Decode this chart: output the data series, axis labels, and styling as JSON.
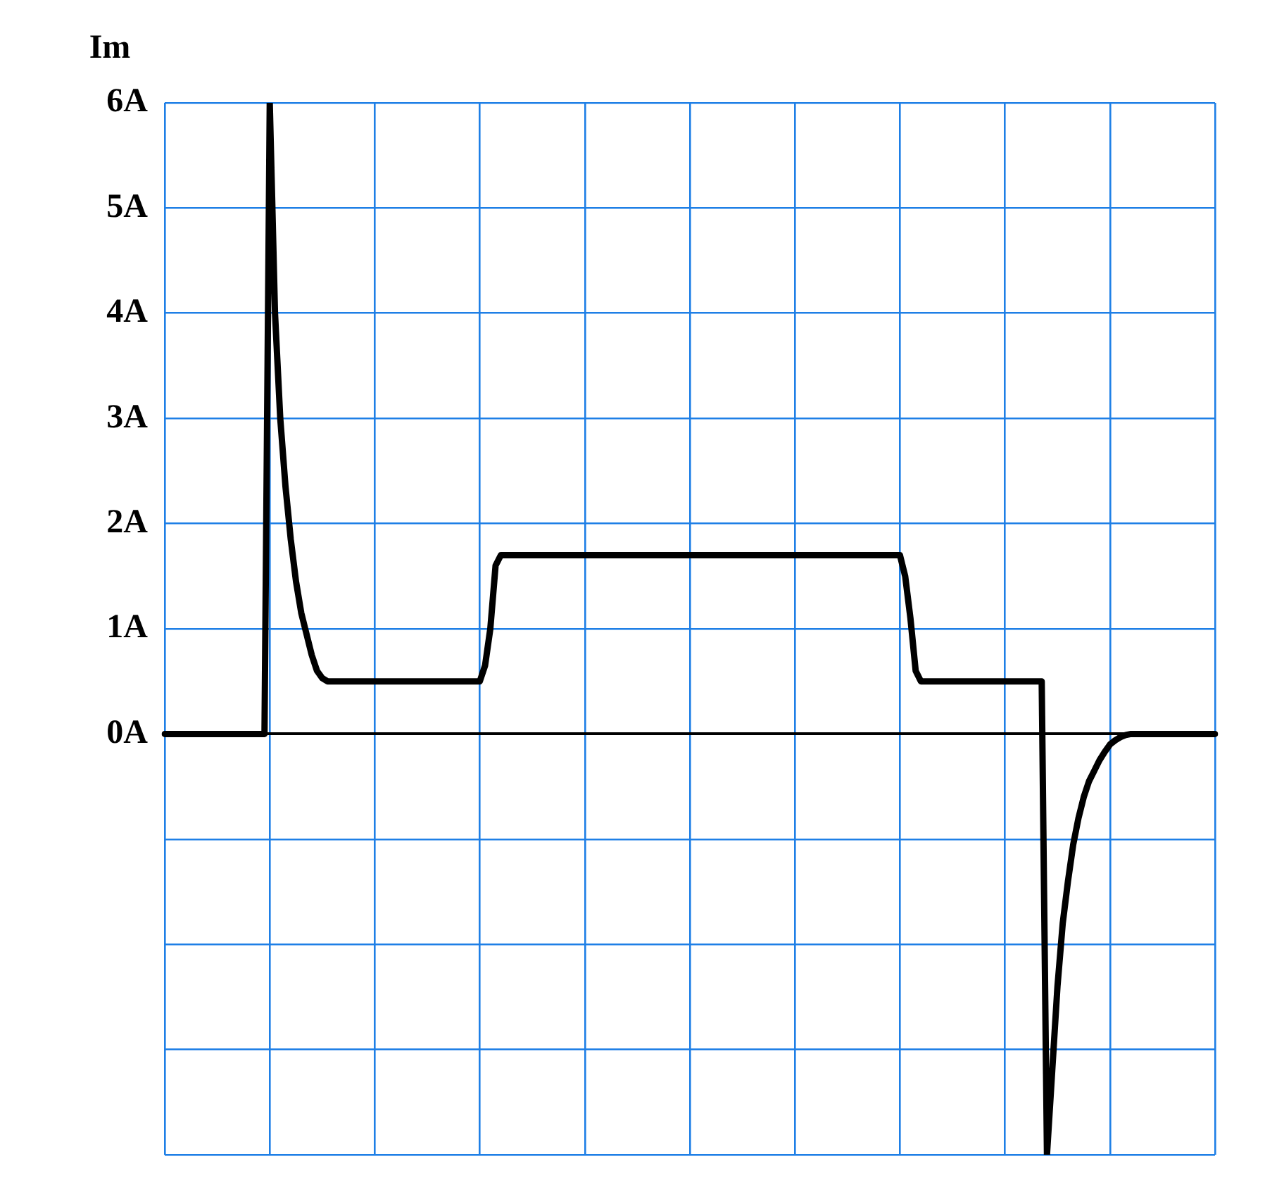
{
  "chart_data": {
    "type": "line",
    "ylabel": "Im",
    "categories": [
      null,
      null,
      null,
      null,
      null,
      null,
      null,
      null,
      null,
      null,
      null,
      null,
      null,
      null,
      null,
      null,
      null,
      null,
      null,
      null,
      null,
      null,
      null,
      null,
      null,
      null,
      null,
      null,
      null,
      null,
      null,
      null,
      null,
      null,
      null,
      null,
      null,
      null,
      null,
      null,
      null,
      null,
      null,
      null,
      null,
      null,
      null,
      null,
      null,
      null,
      null,
      null,
      null,
      null,
      null,
      null,
      null,
      null,
      null,
      null,
      null,
      null,
      null,
      null,
      null,
      null,
      null,
      null,
      null,
      null,
      null,
      null,
      null,
      null,
      null,
      null,
      null,
      null,
      null,
      null,
      null,
      null,
      null,
      null,
      null,
      null,
      null,
      null,
      null,
      null,
      null,
      null,
      null,
      null,
      null,
      null,
      null,
      null,
      null,
      null,
      null,
      null,
      null,
      null,
      null,
      null,
      null,
      null,
      null,
      null,
      null,
      null,
      null,
      null,
      null,
      null,
      null,
      null,
      null,
      null,
      null,
      null,
      null,
      null,
      null,
      null,
      null,
      null,
      null,
      null,
      null,
      null,
      null,
      null,
      null,
      null,
      null,
      null,
      null,
      null,
      null,
      null,
      null,
      null,
      null,
      null,
      null,
      null,
      null,
      null,
      null,
      null,
      null,
      null,
      null,
      null,
      null,
      null,
      null,
      null,
      null,
      null,
      null,
      null,
      null,
      null,
      null,
      null,
      null,
      null,
      null,
      null,
      null,
      null,
      null,
      null,
      null,
      null,
      null,
      null,
      null,
      null,
      null,
      null,
      null,
      null,
      null,
      null,
      null,
      null,
      null,
      null,
      null,
      null,
      null,
      null,
      null,
      null,
      null,
      null,
      null
    ],
    "ylim": [
      -4,
      6
    ],
    "yticks": [
      {
        "value": -4,
        "label": null
      },
      {
        "value": -3,
        "label": null
      },
      {
        "value": -2,
        "label": null
      },
      {
        "value": -1,
        "label": null
      },
      {
        "value": 0,
        "label": "0A"
      },
      {
        "value": 1,
        "label": "1A"
      },
      {
        "value": 2,
        "label": "2A"
      },
      {
        "value": 3,
        "label": "3A"
      },
      {
        "value": 4,
        "label": "4A"
      },
      {
        "value": 5,
        "label": "5A"
      },
      {
        "value": 6,
        "label": "6A"
      }
    ],
    "tick_labels": "y",
    "grid": true,
    "legend": false,
    "marker": "none",
    "line_style": "solid",
    "series": [
      {
        "color": "#000000",
        "values": [
          0,
          0,
          0,
          0,
          0,
          0,
          0,
          0,
          0,
          0,
          0,
          0,
          0,
          0,
          0,
          0,
          0,
          0,
          0,
          0,
          6,
          4,
          3,
          2.35,
          1.85,
          1.45,
          1.15,
          0.95,
          0.75,
          0.6,
          0.53,
          0.5,
          0.5,
          0.5,
          0.5,
          0.5,
          0.5,
          0.5,
          0.5,
          0.5,
          0.5,
          0.5,
          0.5,
          0.5,
          0.5,
          0.5,
          0.5,
          0.5,
          0.5,
          0.5,
          0.5,
          0.5,
          0.5,
          0.5,
          0.5,
          0.5,
          0.5,
          0.5,
          0.5,
          0.5,
          0.5,
          0.65,
          1,
          1.6,
          1.7,
          1.7,
          1.7,
          1.7,
          1.7,
          1.7,
          1.7,
          1.7,
          1.7,
          1.7,
          1.7,
          1.7,
          1.7,
          1.7,
          1.7,
          1.7,
          1.7,
          1.7,
          1.7,
          1.7,
          1.7,
          1.7,
          1.7,
          1.7,
          1.7,
          1.7,
          1.7,
          1.7,
          1.7,
          1.7,
          1.7,
          1.7,
          1.7,
          1.7,
          1.7,
          1.7,
          1.7,
          1.7,
          1.7,
          1.7,
          1.7,
          1.7,
          1.7,
          1.7,
          1.7,
          1.7,
          1.7,
          1.7,
          1.7,
          1.7,
          1.7,
          1.7,
          1.7,
          1.7,
          1.7,
          1.7,
          1.7,
          1.7,
          1.7,
          1.7,
          1.7,
          1.7,
          1.7,
          1.7,
          1.7,
          1.7,
          1.7,
          1.7,
          1.7,
          1.7,
          1.7,
          1.7,
          1.7,
          1.7,
          1.7,
          1.7,
          1.7,
          1.5,
          1.1,
          0.6,
          0.5,
          0.5,
          0.5,
          0.5,
          0.5,
          0.5,
          0.5,
          0.5,
          0.5,
          0.5,
          0.5,
          0.5,
          0.5,
          0.5,
          0.5,
          0.5,
          0.5,
          0.5,
          0.5,
          0.5,
          0.5,
          0.5,
          0.5,
          0.5,
          -4,
          -3.2,
          -2.4,
          -1.8,
          -1.4,
          -1.05,
          -0.8,
          -0.6,
          -0.45,
          -0.35,
          -0.25,
          -0.17,
          -0.1,
          -0.06,
          -0.03,
          -0.01,
          0,
          0,
          0,
          0,
          0,
          0,
          0,
          0,
          0,
          0,
          0,
          0,
          0,
          0,
          0,
          0,
          0
        ]
      }
    ]
  }
}
